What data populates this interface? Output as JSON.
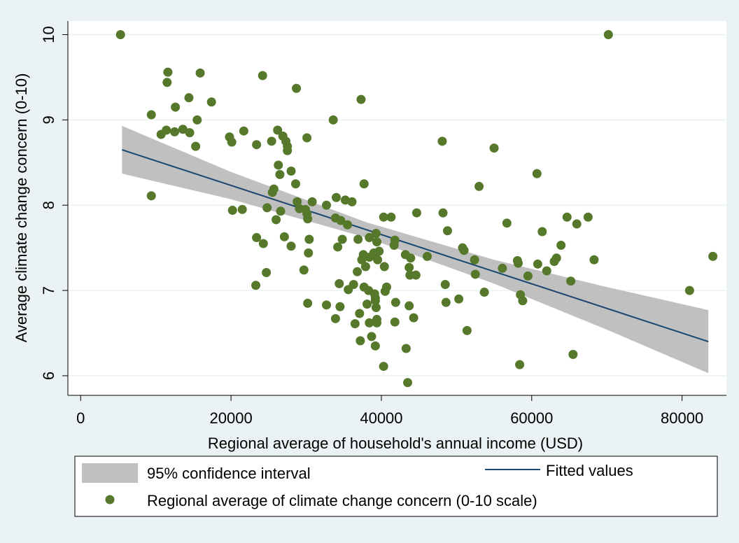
{
  "chart_data": {
    "type": "scatter",
    "x_label": "Regional average of household's annual income (USD)",
    "y_label": "Average climate change concern (0-10)",
    "xlim": [
      -1700,
      85900
    ],
    "ylim": [
      5.77,
      10.16
    ],
    "xticks": [
      0,
      20000,
      40000,
      60000,
      80000
    ],
    "yticks": [
      6,
      7,
      8,
      9,
      10
    ],
    "grid": true,
    "legend": "bottom",
    "series": [
      {
        "name": "95% confidence interval",
        "type": "area",
        "color": "#c0c0c0",
        "x": [
          5500,
          20000,
          38000,
          55000,
          70000,
          83500
        ],
        "lower": [
          8.37,
          8.07,
          7.62,
          7.08,
          6.54,
          6.03
        ],
        "upper": [
          8.93,
          8.39,
          7.8,
          7.36,
          7.04,
          6.77
        ]
      },
      {
        "name": "Fitted values",
        "type": "line",
        "color": "#1a476f",
        "x": [
          5500,
          83500
        ],
        "values": [
          8.65,
          6.4
        ]
      },
      {
        "name": "Regional average of climate change concern (0-10 scale)",
        "type": "scatter",
        "color": "#55782a",
        "x": [
          5300,
          70200,
          9400,
          11600,
          11500,
          12600,
          14400,
          15900,
          17400,
          9400,
          10700,
          11400,
          12500,
          13600,
          14500,
          15500,
          15300,
          19800,
          20100,
          21700,
          24200,
          23400,
          25400,
          26200,
          26900,
          27300,
          27500,
          28700,
          27500,
          26300,
          26500,
          28000,
          28600,
          25500,
          25700,
          30100,
          33600,
          37300,
          20200,
          21500,
          24800,
          26000,
          26600,
          28800,
          29100,
          29900,
          30100,
          30200,
          30800,
          32700,
          34000,
          35200,
          36100,
          37700,
          33900,
          34600,
          35500,
          30400,
          30300,
          23400,
          24300,
          27100,
          28000,
          24700,
          23300,
          29700,
          30200,
          32700,
          34500,
          33900,
          34400,
          34200,
          34800,
          36300,
          35600,
          36800,
          36900,
          37400,
          37600,
          37900,
          38400,
          39000,
          38400,
          39300,
          39400,
          39700,
          39500,
          40400,
          40300,
          41300,
          41700,
          41800,
          43200,
          43900,
          43700,
          43800,
          44600,
          44700,
          46100,
          48200,
          48800,
          48100,
          50800,
          51000,
          52400,
          53000,
          55000,
          56700,
          56100,
          58100,
          58200,
          59500,
          60700,
          60800,
          61400,
          62000,
          63000,
          63300,
          63900,
          64700,
          65200,
          66000,
          67500,
          68300,
          81000,
          84100,
          37700,
          38300,
          39100,
          39200,
          39200,
          39300,
          40700,
          40500,
          38100,
          37100,
          36500,
          37200,
          38700,
          38400,
          39400,
          39400,
          39200,
          40300,
          41800,
          41900,
          43700,
          44300,
          43300,
          43500,
          48500,
          48600,
          50300,
          51400,
          52500,
          53700,
          58500,
          58800,
          58400,
          65500
        ],
        "values": [
          10.0,
          10.0,
          9.06,
          9.56,
          9.44,
          9.15,
          9.26,
          9.55,
          9.21,
          8.11,
          8.83,
          8.88,
          8.86,
          8.89,
          8.85,
          9.0,
          8.69,
          8.8,
          8.74,
          8.87,
          9.52,
          8.71,
          8.75,
          8.88,
          8.81,
          8.75,
          8.64,
          9.37,
          8.69,
          8.47,
          8.36,
          8.4,
          8.25,
          8.15,
          8.19,
          8.79,
          9.0,
          9.24,
          7.94,
          7.95,
          7.97,
          7.83,
          7.93,
          8.04,
          7.96,
          7.95,
          7.9,
          7.84,
          8.04,
          8.0,
          8.09,
          8.06,
          8.04,
          8.25,
          7.85,
          7.82,
          7.77,
          7.6,
          7.44,
          7.62,
          7.55,
          7.63,
          7.52,
          7.21,
          7.06,
          7.24,
          6.85,
          6.83,
          6.81,
          6.67,
          7.08,
          7.51,
          7.6,
          7.07,
          7.01,
          7.22,
          7.6,
          7.36,
          7.42,
          7.28,
          7.39,
          7.44,
          7.62,
          7.67,
          7.57,
          7.46,
          7.36,
          7.28,
          7.86,
          7.86,
          7.53,
          7.59,
          7.42,
          7.38,
          7.27,
          7.18,
          7.18,
          7.91,
          7.4,
          7.91,
          7.7,
          8.75,
          7.5,
          7.47,
          7.36,
          8.22,
          8.67,
          7.79,
          7.26,
          7.35,
          7.32,
          7.17,
          8.37,
          7.31,
          7.69,
          7.23,
          7.34,
          7.38,
          7.53,
          7.86,
          7.11,
          7.78,
          7.86,
          7.36,
          7.0,
          7.4,
          7.04,
          7.0,
          6.96,
          6.91,
          6.88,
          6.8,
          7.04,
          6.99,
          6.84,
          6.73,
          6.61,
          6.41,
          6.46,
          6.62,
          6.66,
          6.62,
          6.35,
          6.11,
          6.63,
          6.86,
          6.82,
          6.68,
          6.32,
          5.92,
          7.07,
          6.86,
          6.9,
          6.53,
          7.19,
          6.98,
          6.95,
          6.88,
          6.13,
          6.25
        ]
      }
    ]
  }
}
